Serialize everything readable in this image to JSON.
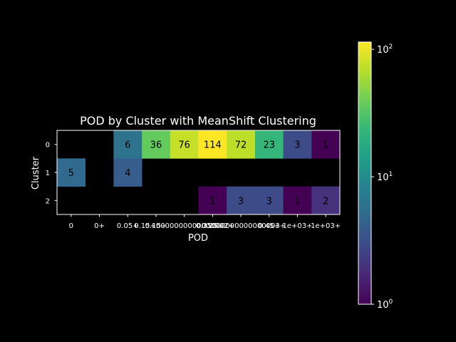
{
  "chart_data": {
    "type": "heatmap",
    "title": "POD by Cluster with MeanShift Clustering",
    "xlabel": "POD",
    "ylabel": "Cluster",
    "x_categories": [
      "0",
      "0+",
      "0.05+",
      "0.15+",
      "0.15+0000000000000002+",
      "0.25+",
      "0.35000000000000003+",
      "0.45+",
      "1e+03+",
      "1e+03+"
    ],
    "x_tick_labels": [
      "0",
      "0+",
      "0.05+",
      "0.15+",
      "0.15+0000000000000002+",
      "0.25+",
      "0.35000000000000003+",
      "0.45+",
      "1e+03+",
      "1e+03+"
    ],
    "y_categories": [
      "0",
      "1",
      "2"
    ],
    "values": [
      [
        null,
        null,
        6,
        36,
        76,
        114,
        72,
        23,
        3,
        1
      ],
      [
        5,
        null,
        4,
        null,
        null,
        null,
        null,
        null,
        null,
        null
      ],
      [
        null,
        null,
        null,
        null,
        null,
        1,
        3,
        3,
        1,
        2
      ]
    ],
    "colorbar": {
      "scale": "log",
      "range": [
        1,
        114
      ],
      "colormap": "viridis",
      "tick_labels": [
        {
          "value": 1,
          "base": "10",
          "exp": "0"
        },
        {
          "value": 10,
          "base": "10",
          "exp": "1"
        },
        {
          "value": 100,
          "base": "10",
          "exp": "2"
        }
      ]
    },
    "background_color": "#000000",
    "text_color": "#ffffff",
    "cell_text_color": "#000000"
  }
}
